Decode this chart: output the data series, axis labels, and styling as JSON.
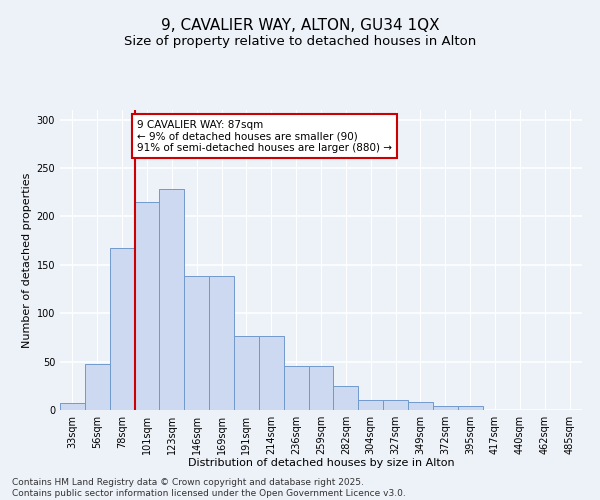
{
  "title1": "9, CAVALIER WAY, ALTON, GU34 1QX",
  "title2": "Size of property relative to detached houses in Alton",
  "xlabel": "Distribution of detached houses by size in Alton",
  "ylabel": "Number of detached properties",
  "categories": [
    "33sqm",
    "56sqm",
    "78sqm",
    "101sqm",
    "123sqm",
    "146sqm",
    "169sqm",
    "191sqm",
    "214sqm",
    "236sqm",
    "259sqm",
    "282sqm",
    "304sqm",
    "327sqm",
    "349sqm",
    "372sqm",
    "395sqm",
    "417sqm",
    "440sqm",
    "462sqm",
    "485sqm"
  ],
  "values": [
    7,
    48,
    167,
    215,
    228,
    138,
    138,
    76,
    76,
    45,
    45,
    25,
    10,
    10,
    8,
    4,
    4,
    0,
    0,
    0,
    0
  ],
  "bar_color": "#ccd9f0",
  "bar_edge_color": "#7099cc",
  "vline_color": "#cc0000",
  "vline_pos": 2.5,
  "annotation_text": "9 CAVALIER WAY: 87sqm\n← 9% of detached houses are smaller (90)\n91% of semi-detached houses are larger (880) →",
  "annotation_box_color": "#ffffff",
  "annotation_box_edge": "#cc0000",
  "ylim": [
    0,
    310
  ],
  "yticks": [
    0,
    50,
    100,
    150,
    200,
    250,
    300
  ],
  "footer": "Contains HM Land Registry data © Crown copyright and database right 2025.\nContains public sector information licensed under the Open Government Licence v3.0.",
  "bg_color": "#edf1f8",
  "grid_color": "#ffffff",
  "title_fontsize": 11,
  "subtitle_fontsize": 9.5,
  "axis_fontsize": 8,
  "tick_fontsize": 7,
  "footer_fontsize": 6.5,
  "annot_fontsize": 7.5
}
